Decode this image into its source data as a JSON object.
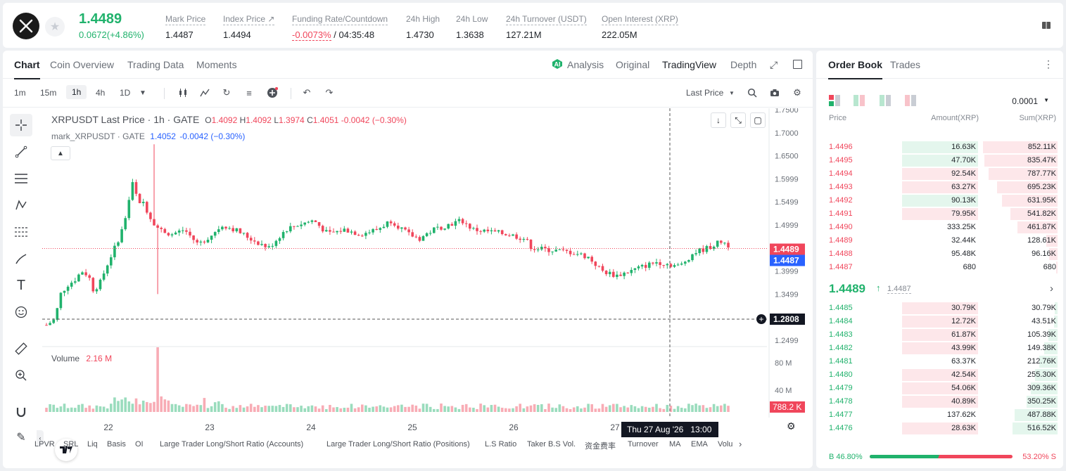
{
  "header": {
    "last_price": "1.4489",
    "change": "0.0672(+4.86%)",
    "stats": [
      {
        "label": "Mark Price",
        "value": "1.4487"
      },
      {
        "label": "Index Price ↗",
        "value": "1.4494"
      },
      {
        "label": "Funding Rate/Countdown",
        "value": "-0.0073%",
        "value2": " / 04:35:48"
      },
      {
        "label": "24h High",
        "value": "1.4730"
      },
      {
        "label": "24h Low",
        "value": "1.3638"
      },
      {
        "label": "24h Turnover (USDT)",
        "value": "127.21M"
      },
      {
        "label": "Open Interest (XRP)",
        "value": "222.05M"
      }
    ]
  },
  "chart_tabs": [
    "Chart",
    "Coin Overview",
    "Trading Data",
    "Moments"
  ],
  "chart_view_tabs": [
    "Analysis",
    "Original",
    "TradingView",
    "Depth"
  ],
  "timeframes": [
    "1m",
    "15m",
    "1h",
    "4h",
    "1D"
  ],
  "price_source": "Last Price",
  "legend": {
    "title": "XRPUSDT Last Price · 1h · GATE",
    "o_label": "O",
    "o": "1.4092",
    "h_label": "H",
    "h": "1.4092",
    "l_label": "L",
    "l": "1.3974",
    "c_label": "C",
    "c": "1.4051",
    "chg": "-0.0042 (−0.30%)",
    "mark_label": "mark_XRPUSDT · GATE",
    "mark_val": "1.4052",
    "mark_chg": "-0.0042 (−0.30%)",
    "volume_label": "Volume",
    "volume_val": "2.16 M"
  },
  "price_labels": {
    "last": "1.4489",
    "mark": "1.4487",
    "crosshair": "1.2808",
    "volume_current": "788.2 K",
    "time_tooltip": "Thu 27 Aug '26",
    "time_tooltip_hour": "13:00"
  },
  "chart_data": {
    "type": "candlestick",
    "y_ticks": [
      "1.7500",
      "1.7000",
      "1.6500",
      "1.5999",
      "1.5499",
      "1.4999",
      "1.3999",
      "1.3499",
      "1.2999",
      "1.2499"
    ],
    "volume_ticks": [
      "80 M",
      "40 M"
    ],
    "x_ticks": [
      "22",
      "23",
      "24",
      "25",
      "26",
      "27"
    ],
    "ylim": [
      1.2499,
      1.75
    ],
    "colors": {
      "up": "#20b26c",
      "down": "#f0465b"
    }
  },
  "bottom_nav": [
    "LPVR",
    "SRL",
    "Liq",
    "Basis",
    "OI",
    "Large Trader Long/Short Ratio (Accounts)",
    "Large Trader Long/Short Ratio (Positions)",
    "L.S Ratio",
    "Taker B.S Vol.",
    "资金费率",
    "Turnover",
    "MA",
    "EMA",
    "Volu"
  ],
  "orderbook": {
    "tabs": [
      "Order Book",
      "Trades"
    ],
    "precision": "0.0001",
    "columns": [
      "Price",
      "Amount(XRP)",
      "Sum(XRP)"
    ],
    "asks": [
      {
        "price": "1.4496",
        "amount": "16.63K",
        "sum": "852.11K",
        "type": "g"
      },
      {
        "price": "1.4495",
        "amount": "47.70K",
        "sum": "835.47K",
        "type": "g"
      },
      {
        "price": "1.4494",
        "amount": "92.54K",
        "sum": "787.77K",
        "type": "r"
      },
      {
        "price": "1.4493",
        "amount": "63.27K",
        "sum": "695.23K",
        "type": "r"
      },
      {
        "price": "1.4492",
        "amount": "90.13K",
        "sum": "631.95K",
        "type": "g"
      },
      {
        "price": "1.4491",
        "amount": "79.95K",
        "sum": "541.82K",
        "type": "r"
      },
      {
        "price": "1.4490",
        "amount": "333.25K",
        "sum": "461.87K",
        "type": "n"
      },
      {
        "price": "1.4489",
        "amount": "32.44K",
        "sum": "128.61K",
        "type": "n"
      },
      {
        "price": "1.4488",
        "amount": "95.48K",
        "sum": "96.16K",
        "type": "n"
      },
      {
        "price": "1.4487",
        "amount": "680",
        "sum": "680",
        "type": "n"
      }
    ],
    "mid_price": "1.4489",
    "mid_mark": "1.4487",
    "bids": [
      {
        "price": "1.4485",
        "amount": "30.79K",
        "sum": "30.79K",
        "type": "r"
      },
      {
        "price": "1.4484",
        "amount": "12.72K",
        "sum": "43.51K",
        "type": "r"
      },
      {
        "price": "1.4483",
        "amount": "61.87K",
        "sum": "105.39K",
        "type": "r"
      },
      {
        "price": "1.4482",
        "amount": "43.99K",
        "sum": "149.38K",
        "type": "r"
      },
      {
        "price": "1.4481",
        "amount": "63.37K",
        "sum": "212.76K",
        "type": "n"
      },
      {
        "price": "1.4480",
        "amount": "42.54K",
        "sum": "255.30K",
        "type": "r"
      },
      {
        "price": "1.4479",
        "amount": "54.06K",
        "sum": "309.36K",
        "type": "r"
      },
      {
        "price": "1.4478",
        "amount": "40.89K",
        "sum": "350.25K",
        "type": "r"
      },
      {
        "price": "1.4477",
        "amount": "137.62K",
        "sum": "487.88K",
        "type": "n"
      },
      {
        "price": "1.4476",
        "amount": "28.63K",
        "sum": "516.52K",
        "type": "r"
      }
    ],
    "buy_ratio": "B 46.80%",
    "sell_ratio": "53.20% S",
    "buy_fraction": 0.468
  }
}
